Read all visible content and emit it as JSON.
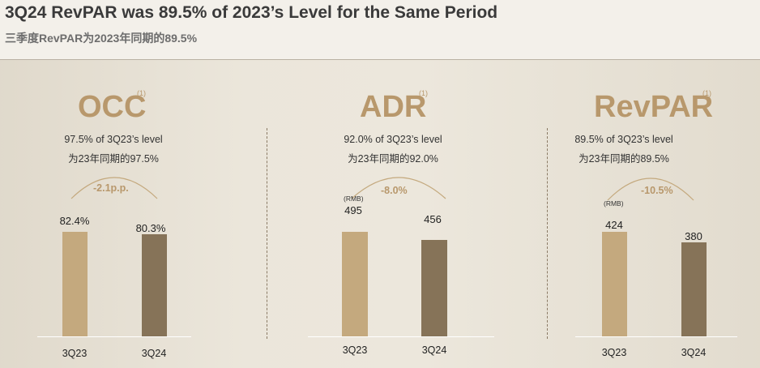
{
  "header": {
    "title": "3Q24 RevPAR was 89.5% of 2023’s Level for the Same Period",
    "subtitle": "三季度RevPAR为2023年同期的89.5%"
  },
  "colors": {
    "accent": "#b8986c",
    "bar_3q23": "#c4a97e",
    "bar_3q24": "#867358"
  },
  "chart_data": [
    {
      "type": "bar",
      "title": "OCC",
      "footnote": "(1)",
      "note_en": "97.5% of 3Q23’s level",
      "note_cn": "为23年同期的97.5%",
      "change": "-2.1p.p.",
      "unit": "",
      "categories": [
        "3Q23",
        "3Q24"
      ],
      "values": [
        82.4,
        80.3
      ],
      "value_labels": [
        "82.4%",
        "80.3%"
      ]
    },
    {
      "type": "bar",
      "title": "ADR",
      "footnote": "(1)",
      "note_en": "92.0% of 3Q23’s level",
      "note_cn": "为23年同期的92.0%",
      "change": "-8.0%",
      "unit": "(RMB)",
      "categories": [
        "3Q23",
        "3Q24"
      ],
      "values": [
        495,
        456
      ],
      "value_labels": [
        "495",
        "456"
      ]
    },
    {
      "type": "bar",
      "title": "RevPAR",
      "footnote": "(1)",
      "note_en": "89.5% of 3Q23’s level",
      "note_cn": "为23年同期的89.5%",
      "change": "-10.5%",
      "unit": "(RMB)",
      "categories": [
        "3Q23",
        "3Q24"
      ],
      "values": [
        424,
        380
      ],
      "value_labels": [
        "424",
        "380"
      ]
    }
  ]
}
